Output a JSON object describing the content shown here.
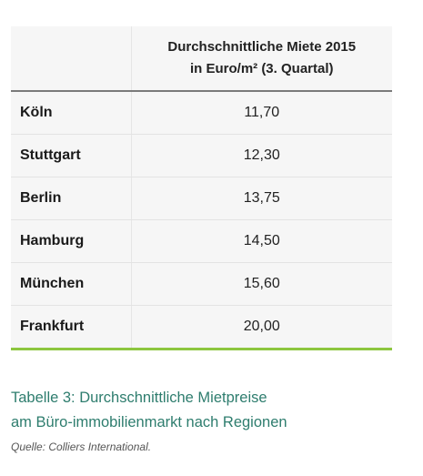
{
  "table": {
    "header": {
      "col1": "",
      "col2_line1": "Durchschnittliche Miete 2015",
      "col2_line2": "in Euro/m² (3. Quartal)"
    },
    "rows": [
      {
        "city": "Köln",
        "value": "11,70"
      },
      {
        "city": "Stuttgart",
        "value": "12,30"
      },
      {
        "city": "Berlin",
        "value": "13,75"
      },
      {
        "city": "Hamburg",
        "value": "14,50"
      },
      {
        "city": "München",
        "value": "15,60"
      },
      {
        "city": "Frankfurt",
        "value": "20,00"
      }
    ]
  },
  "caption": {
    "line1": "Tabelle 3: Durchschnittliche Mietpreise",
    "line2": "am Büro-immobilienmarkt nach Regionen"
  },
  "source": "Quelle: Colliers International.",
  "colors": {
    "accent_line": "#8dc63f",
    "caption_text": "#2e7d6e",
    "cell_background": "#f6f6f6"
  }
}
